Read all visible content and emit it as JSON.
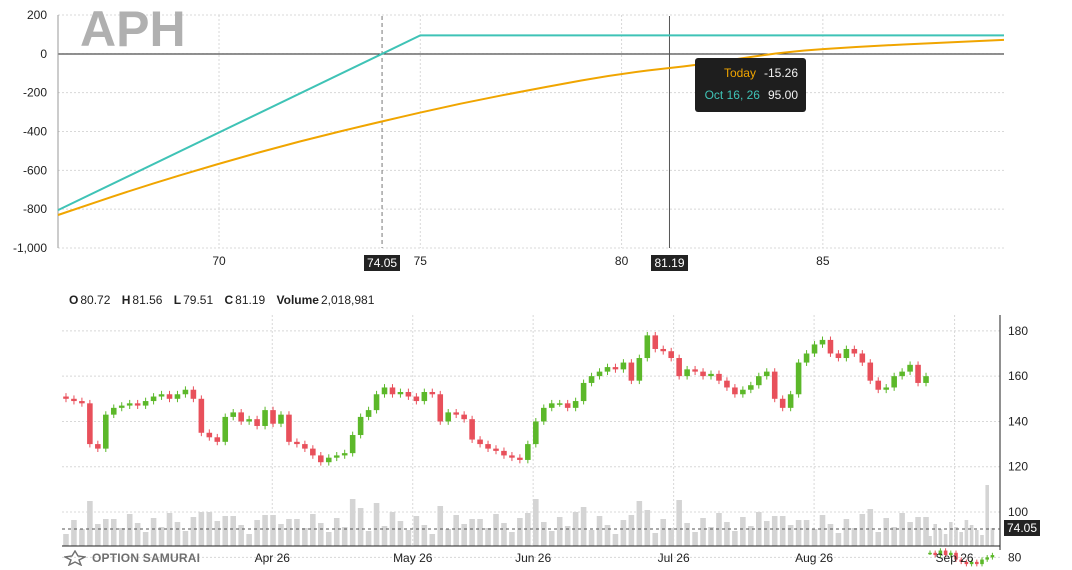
{
  "ticker": "APH",
  "colors": {
    "today": "#f0a500",
    "expiry": "#3fc3b6",
    "up_candle": "#5cb82a",
    "down_candle": "#e8505b",
    "volume": "#d4d4d4"
  },
  "tooltip": {
    "today_label": "Today",
    "today_value": "-15.26",
    "expiry_label": "Oct 16, 26",
    "expiry_value": "95.00"
  },
  "markers": {
    "breakeven": "74.05",
    "cursor": "81.19",
    "last_price": "74.05"
  },
  "ohlc": {
    "o_label": "O",
    "o": "80.72",
    "h_label": "H",
    "h": "81.56",
    "l_label": "L",
    "l": "79.51",
    "c_label": "C",
    "c": "81.19",
    "vol_label": "Volume",
    "vol": "2,018,981"
  },
  "branding": {
    "logo_text": "OPTION SAMURAI"
  },
  "chart_data": [
    {
      "type": "line",
      "name": "payoff",
      "xlim": [
        66,
        89.5
      ],
      "ylim": [
        -1000,
        200
      ],
      "x_ticks": [
        "70",
        "75",
        "80",
        "85"
      ],
      "y_ticks": [
        "200",
        "0",
        "-200",
        "-400",
        "-600",
        "-800",
        "-1,000"
      ],
      "series": [
        {
          "name": "Oct 16, 26",
          "x": [
            66,
            75,
            89.5
          ],
          "values": [
            -805,
            95,
            95
          ]
        },
        {
          "name": "Today",
          "x": [
            66,
            68,
            70,
            72,
            74,
            76,
            78,
            80,
            81.19,
            82,
            84,
            86,
            88,
            89.5
          ],
          "values": [
            -830,
            -690,
            -565,
            -450,
            -350,
            -255,
            -175,
            -100,
            -15.26,
            -55,
            10,
            38,
            58,
            72
          ]
        }
      ]
    },
    {
      "type": "candlestick",
      "name": "price",
      "ylim": [
        85,
        187
      ],
      "y_ticks": [
        "180",
        "160",
        "140",
        "120",
        "100",
        "80"
      ],
      "x_ticks": [
        "Apr 26",
        "May 26",
        "Jun 26",
        "Jul 26",
        "Aug 26",
        "Sep 26"
      ],
      "closes": [
        150,
        149,
        148,
        130,
        128,
        143,
        146,
        147,
        148,
        147,
        149,
        151,
        152,
        150,
        152,
        154,
        150,
        135,
        133,
        131,
        142,
        144,
        140,
        141,
        138,
        145,
        139,
        143,
        131,
        130,
        128,
        125,
        122,
        124,
        125,
        126,
        134,
        142,
        145,
        152,
        155,
        152,
        153,
        151,
        149,
        153,
        152,
        140,
        144,
        143,
        141,
        132,
        130,
        128,
        127,
        125,
        124,
        123,
        130,
        140,
        146,
        148,
        148,
        146,
        149,
        157,
        160,
        162,
        164,
        163,
        166,
        158,
        168,
        178,
        172,
        171,
        168,
        160,
        163,
        162,
        160,
        161,
        158,
        155,
        152,
        154,
        156,
        160,
        162,
        150,
        146,
        152,
        166,
        170,
        174,
        176,
        170,
        168,
        172,
        170,
        166,
        158,
        154,
        155,
        160,
        162,
        165,
        157,
        160
      ]
    }
  ]
}
